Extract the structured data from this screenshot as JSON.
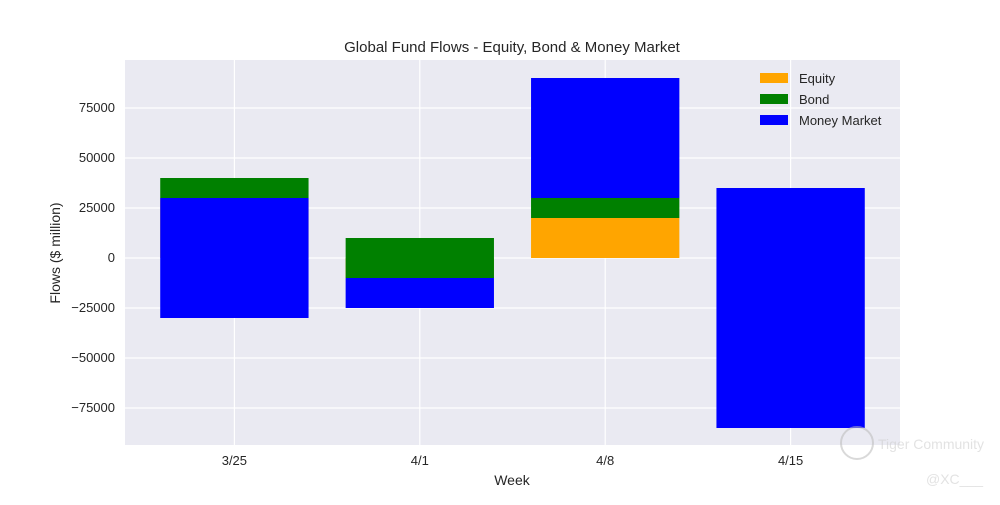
{
  "chart_data": {
    "type": "bar",
    "stacked": true,
    "title": "Global Fund Flows - Equity, Bond & Money Market",
    "xlabel": "Week",
    "ylabel": "Flows ($ million)",
    "categories": [
      "3/25",
      "4/1",
      "4/8",
      "4/15"
    ],
    "ylim": [
      -93500,
      99000
    ],
    "yticks": [
      -75000,
      -50000,
      -25000,
      0,
      25000,
      50000,
      75000
    ],
    "ytick_labels": [
      "−75000",
      "−50000",
      "−25000",
      "0",
      "25000",
      "50000",
      "75000"
    ],
    "grid": true,
    "legend_position": "top-right",
    "series": [
      {
        "name": "Equity",
        "color": "#FFA500",
        "segments": [
          [
            0,
            30000
          ],
          [
            0,
            -10000
          ],
          [
            0,
            20000
          ],
          [
            0,
            0
          ]
        ]
      },
      {
        "name": "Bond",
        "color": "#008000",
        "segments": [
          [
            30000,
            40000
          ],
          [
            -10000,
            10000
          ],
          [
            20000,
            30000
          ],
          [
            0,
            0
          ]
        ]
      },
      {
        "name": "Money Market",
        "color": "#0000FF",
        "segments": [
          [
            -30000,
            30000
          ],
          [
            -25000,
            -10000
          ],
          [
            30000,
            90000
          ],
          [
            -85000,
            35000
          ]
        ]
      }
    ]
  },
  "watermark": {
    "brand": "Tiger Community",
    "handle": "@XC___"
  }
}
